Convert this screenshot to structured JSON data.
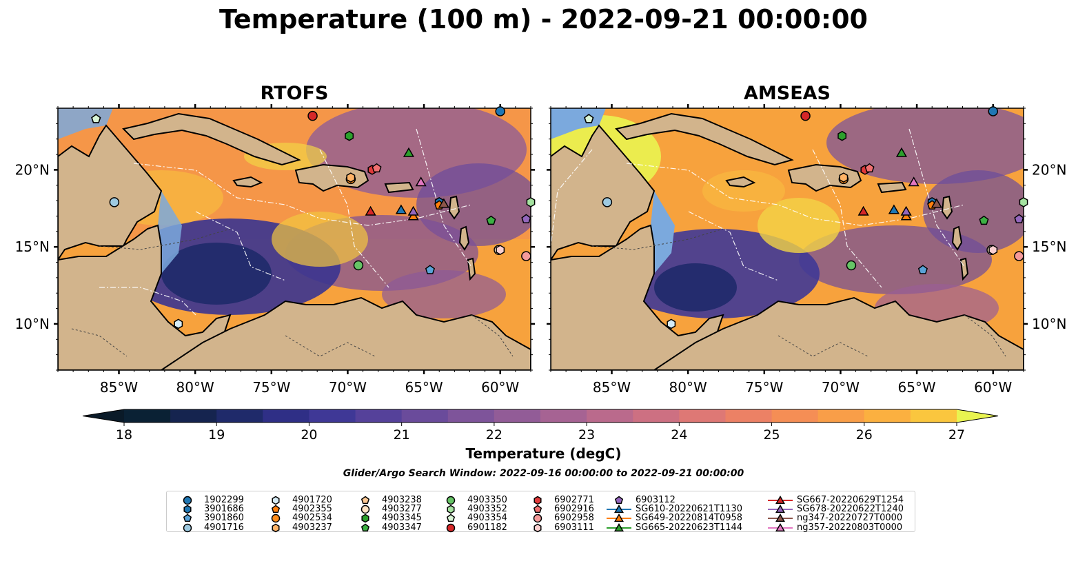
{
  "title": "Temperature (100 m) - 2022-09-21 00:00:00",
  "panels": [
    {
      "title": "RTOFS"
    },
    {
      "title": "AMSEAS"
    }
  ],
  "lon_ticks": [
    "85°W",
    "80°W",
    "75°W",
    "70°W",
    "65°W",
    "60°W"
  ],
  "lat_ticks": [
    "20°N",
    "15°N",
    "10°N"
  ],
  "map_extent": {
    "lon": [
      -89,
      -58
    ],
    "lat": [
      7,
      24
    ]
  },
  "colorbar": {
    "label": "Temperature (degC)",
    "min": 18,
    "max": 27,
    "ticks": [
      "18",
      "19",
      "20",
      "21",
      "22",
      "23",
      "24",
      "25",
      "26",
      "27"
    ],
    "colors": [
      "#0a2134",
      "#15244f",
      "#1f2a6a",
      "#2f2f86",
      "#3f3896",
      "#55419a",
      "#6a4b9b",
      "#7e549a",
      "#925c97",
      "#a66393",
      "#ba6a8c",
      "#cd7082",
      "#de7875",
      "#ec8165",
      "#f58e55",
      "#f99e48",
      "#fbb040",
      "#fac63e",
      "#f2dc45"
    ],
    "extend_low_color": "#0a1a28",
    "extend_high_color": "#e9f450"
  },
  "search_window": "Glider/Argo Search Window: 2022-09-16 00:00:00 to 2022-09-21 00:00:00",
  "legend": [
    {
      "label": "1902299",
      "marker": "circle",
      "color": "#1f77b4"
    },
    {
      "label": "3901686",
      "marker": "hexagon",
      "color": "#1f77b4"
    },
    {
      "label": "3901860",
      "marker": "pentagon",
      "color": "#5aa3d8"
    },
    {
      "label": "4901716",
      "marker": "circle",
      "color": "#9ecae1"
    },
    {
      "label": "4901720",
      "marker": "hexagon",
      "color": "#d6ecf7"
    },
    {
      "label": "4902355",
      "marker": "pentagon",
      "color": "#ff7f0e"
    },
    {
      "label": "4902534",
      "marker": "circle",
      "color": "#ff8c1a"
    },
    {
      "label": "4903237",
      "marker": "hexagon",
      "color": "#ffb366"
    },
    {
      "label": "4903238",
      "marker": "pentagon",
      "color": "#ffc994"
    },
    {
      "label": "4903277",
      "marker": "circle",
      "color": "#ffe3c4"
    },
    {
      "label": "4903345",
      "marker": "hexagon",
      "color": "#2ca02c"
    },
    {
      "label": "4903347",
      "marker": "pentagon",
      "color": "#3cb043"
    },
    {
      "label": "4903350",
      "marker": "circle",
      "color": "#66c466"
    },
    {
      "label": "4903352",
      "marker": "hexagon",
      "color": "#a6e3a1"
    },
    {
      "label": "4903354",
      "marker": "pentagon",
      "color": "#d9f5d6"
    },
    {
      "label": "6901182",
      "marker": "circle",
      "color": "#d62728"
    },
    {
      "label": "6902771",
      "marker": "hexagon",
      "color": "#e0393a"
    },
    {
      "label": "6902916",
      "marker": "pentagon",
      "color": "#f07070"
    },
    {
      "label": "6902958",
      "marker": "circle",
      "color": "#f59a9a"
    },
    {
      "label": "6903111",
      "marker": "hexagon",
      "color": "#fbd0d0"
    },
    {
      "label": "6903112",
      "marker": "pentagon",
      "color": "#9467bd"
    },
    {
      "label": "SG610-20220621T1130",
      "marker": "triangle-line",
      "color": "#1f77b4"
    },
    {
      "label": "SG649-20220814T0958",
      "marker": "triangle-line",
      "color": "#ff7f0e"
    },
    {
      "label": "SG665-20220623T1144",
      "marker": "triangle-line",
      "color": "#2ca02c"
    },
    {
      "label": "SG667-20220629T1254",
      "marker": "triangle-line",
      "color": "#d62728"
    },
    {
      "label": "SG678-20220622T1240",
      "marker": "triangle-line",
      "color": "#9467bd"
    },
    {
      "label": "ng347-20220727T0000",
      "marker": "triangle-line",
      "color": "#8c564b"
    },
    {
      "label": "ng357-20220803T0000",
      "marker": "triangle-line",
      "color": "#e377c2"
    }
  ],
  "platforms": [
    {
      "id": "1902299",
      "lon": -60.0,
      "lat": 23.8
    },
    {
      "id": "3901686",
      "lon": -64.0,
      "lat": 17.9
    },
    {
      "id": "3901860",
      "lon": -64.6,
      "lat": 13.5
    },
    {
      "id": "4901716",
      "lon": -85.3,
      "lat": 17.9
    },
    {
      "id": "4901720",
      "lon": -81.1,
      "lat": 10.0
    },
    {
      "id": "4902355",
      "lon": -64.0,
      "lat": 17.7
    },
    {
      "id": "4902534",
      "lon": -69.8,
      "lat": 19.4
    },
    {
      "id": "4903237",
      "lon": -69.8,
      "lat": 19.5
    },
    {
      "id": "4903238",
      "lon": -86.5,
      "lat": 23.3
    },
    {
      "id": "4903277",
      "lon": -60.1,
      "lat": 14.8
    },
    {
      "id": "4903345",
      "lon": -69.9,
      "lat": 22.2
    },
    {
      "id": "4903347",
      "lon": -60.6,
      "lat": 16.7
    },
    {
      "id": "4903350",
      "lon": -69.3,
      "lat": 13.8
    },
    {
      "id": "4903352",
      "lon": -58.0,
      "lat": 17.9
    },
    {
      "id": "4903354",
      "lon": -86.5,
      "lat": 23.3
    },
    {
      "id": "6901182",
      "lon": -72.3,
      "lat": 23.5
    },
    {
      "id": "6902771",
      "lon": -68.4,
      "lat": 20.0
    },
    {
      "id": "6902916",
      "lon": -68.1,
      "lat": 20.1
    },
    {
      "id": "6902958",
      "lon": -58.3,
      "lat": 14.4
    },
    {
      "id": "6903111",
      "lon": -60.0,
      "lat": 14.8
    },
    {
      "id": "6903112",
      "lon": -58.3,
      "lat": 16.8
    },
    {
      "id": "SG610-20220621T1130",
      "lon": -66.5,
      "lat": 17.4
    },
    {
      "id": "SG649-20220814T0958",
      "lon": -65.7,
      "lat": 17.0
    },
    {
      "id": "SG665-20220623T1144",
      "lon": -66.0,
      "lat": 21.1
    },
    {
      "id": "SG667-20220629T1254",
      "lon": -68.5,
      "lat": 17.3
    },
    {
      "id": "SG678-20220622T1240",
      "lon": -65.7,
      "lat": 17.3
    },
    {
      "id": "ng347-20220727T0000",
      "lon": -63.7,
      "lat": 17.8
    },
    {
      "id": "ng357-20220803T0000",
      "lon": -65.2,
      "lat": 19.2
    }
  ]
}
